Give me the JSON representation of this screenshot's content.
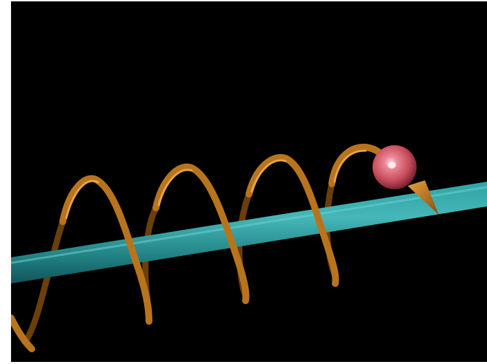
{
  "scene": {
    "background_color": "#000000",
    "frame_color": "#ffffff",
    "rod_color": "#1f8a8c",
    "helix_color": "#b8741c",
    "sphere_color": "#d85a6a",
    "arrow_color": "#c7811f",
    "objects": [
      "straight-rod",
      "helical-trajectory",
      "charged-particle",
      "velocity-arrow"
    ]
  }
}
